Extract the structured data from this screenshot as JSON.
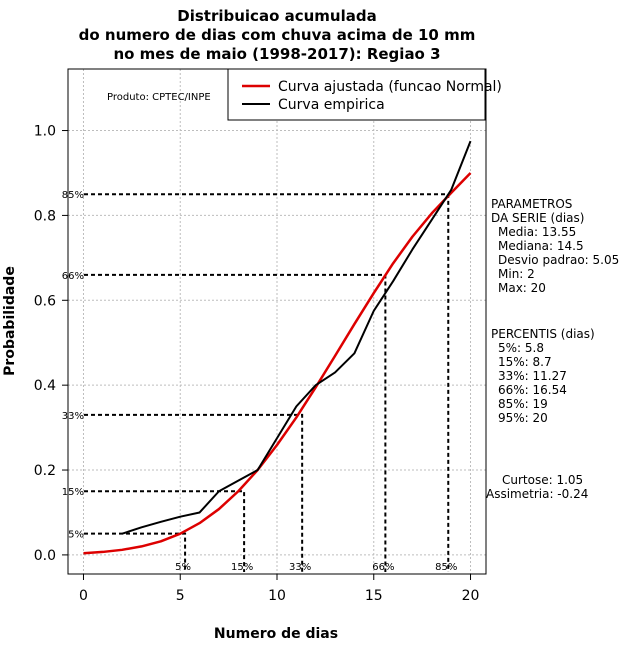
{
  "chart_data": {
    "type": "line",
    "title": [
      "Distribuicao acumulada",
      "do numero de dias com chuva acima de 10 mm",
      "no mes de maio (1998-2017): Regiao 3"
    ],
    "xlabel": "Numero de dias",
    "ylabel": "Probabilidade",
    "xlim": [
      -0.8,
      20.8
    ],
    "ylim": [
      -0.045,
      1.145
    ],
    "x_ticks": [
      0,
      5,
      10,
      15,
      20
    ],
    "y_ticks": [
      0.0,
      0.2,
      0.4,
      0.6,
      0.8,
      1.0
    ],
    "x_tick_labels": [
      "0",
      "5",
      "10",
      "15",
      "20"
    ],
    "y_tick_labels": [
      "0.0",
      "0.2",
      "0.4",
      "0.6",
      "0.8",
      "1.0"
    ],
    "grid": true,
    "series": [
      {
        "name": "Curva ajustada (funcao Normal)",
        "color": "#dd0000",
        "x": [
          0,
          1,
          2,
          3,
          4,
          5,
          6,
          7,
          8,
          9,
          10,
          11,
          12,
          13,
          14,
          15,
          16,
          17,
          18,
          19,
          20
        ],
        "y": [
          0.004,
          0.007,
          0.012,
          0.02,
          0.032,
          0.05,
          0.075,
          0.108,
          0.15,
          0.2,
          0.259,
          0.324,
          0.395,
          0.469,
          0.544,
          0.617,
          0.687,
          0.75,
          0.805,
          0.853,
          0.9
        ]
      },
      {
        "name": "Curva empirica",
        "color": "#000000",
        "x": [
          2,
          3,
          4,
          5,
          6,
          7,
          8,
          9,
          11,
          12,
          13,
          14,
          15,
          16,
          17,
          18,
          19,
          20
        ],
        "y": [
          0.05,
          0.065,
          0.078,
          0.09,
          0.1,
          0.15,
          0.175,
          0.2,
          0.35,
          0.4,
          0.43,
          0.475,
          0.575,
          0.645,
          0.72,
          0.79,
          0.86,
          0.975
        ]
      }
    ],
    "percentile_markers": [
      {
        "label": "5%",
        "y_label": "5%",
        "p": 0.05,
        "x": 5.25
      },
      {
        "label": "15%",
        "y_label": "15%",
        "p": 0.15,
        "x": 8.3
      },
      {
        "label": "33%",
        "y_label": "33%",
        "p": 0.33,
        "x": 11.3
      },
      {
        "label": "66%",
        "y_label": "66%",
        "p": 0.66,
        "x": 15.6
      },
      {
        "label": "85%",
        "y_label": "85%",
        "p": 0.85,
        "x": 18.85
      }
    ],
    "legend_position": "top-right",
    "credit": "Produto: CPTEC/INPE",
    "side_panel": {
      "parametros": [
        "PARAMETROS",
        "DA SERIE (dias)",
        "Media: 13.55",
        "Mediana: 14.5",
        "Desvio padrao: 5.05",
        "Min: 2",
        "Max: 20"
      ],
      "percentis": [
        "PERCENTIS (dias)",
        "5%: 5.8",
        "15%: 8.7",
        "33%: 11.27",
        "66%: 16.54",
        "85%: 19",
        "95%: 20"
      ],
      "stats": [
        "Curtose: 1.05",
        "Assimetria: -0.24"
      ]
    }
  }
}
